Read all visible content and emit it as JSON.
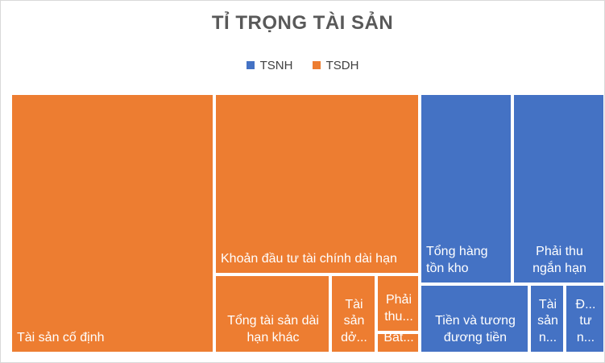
{
  "chart_data": {
    "type": "treemap",
    "title": "TỈ TRỌNG TÀI SẢN",
    "legend_position": "top",
    "series": [
      {
        "name": "TSNH",
        "color": "#4472c4"
      },
      {
        "name": "TSDH",
        "color": "#ed7d31"
      }
    ],
    "items": [
      {
        "name": "Tài sản cố định",
        "group": "TSDH",
        "value": 34
      },
      {
        "name": "Khoản đầu tư tài chính dài hạn",
        "group": "TSDH",
        "value": 23
      },
      {
        "name": "Tổng tài sản dài hạn khác",
        "group": "TSDH",
        "value": 10
      },
      {
        "name": "Tài sản dở...",
        "group": "TSDH",
        "value": 3.5
      },
      {
        "name": "Phải thu...",
        "group": "TSDH",
        "value": 2.1
      },
      {
        "name": "Bất...",
        "group": "TSDH",
        "value": 0.9
      },
      {
        "name": "Tổng hàng tồn kho",
        "group": "TSNH",
        "value": 9.6
      },
      {
        "name": "Phải thu ngắn hạn",
        "group": "TSNH",
        "value": 9.1
      },
      {
        "name": "Tiền và tương đương tiền",
        "group": "TSNH",
        "value": 6.1
      },
      {
        "name": "Tài sản n...",
        "group": "TSNH",
        "value": 2.2
      },
      {
        "name": "Đ... tư n...",
        "group": "TSNH",
        "value": 2.1
      }
    ]
  }
}
